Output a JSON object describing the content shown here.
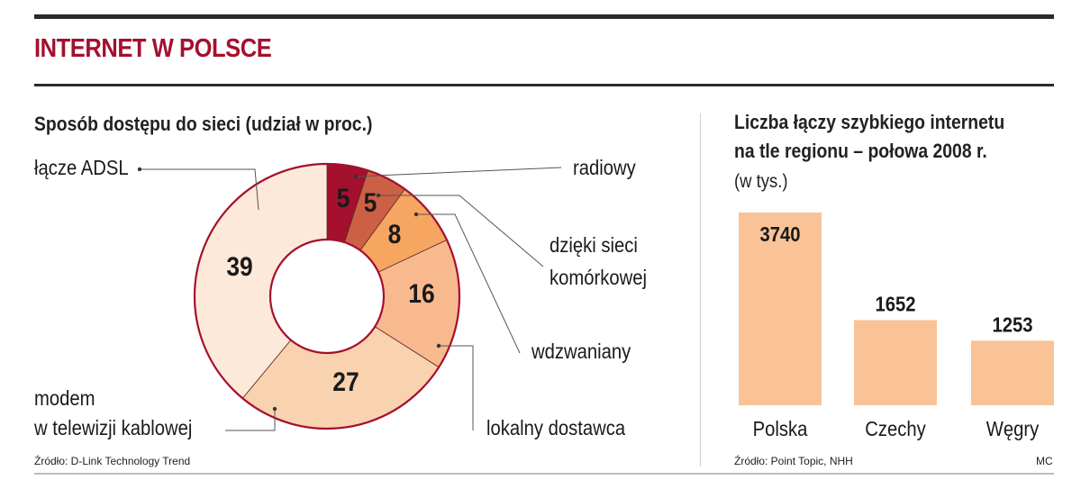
{
  "header": {
    "title": "INTERNET W POLSCE"
  },
  "left_panel": {
    "title": "Sposób dostępu do sieci (udział w proc.)",
    "source": "Źródło: D-Link Technology Trend"
  },
  "right_panel": {
    "title_lines": [
      "Liczba łączy szybkiego internetu",
      "na tle regionu – połowa 2008 r."
    ],
    "unit": "(w tys.)",
    "source": "Źródło: Point Topic, NHH",
    "credit": "MC"
  },
  "chart_data": [
    {
      "type": "pie",
      "title": "Sposób dostępu do sieci (udział w proc.)",
      "categories": [
        "radiowy",
        "dzięki sieci komórkowej",
        "wdzwaniany",
        "lokalny dostawca",
        "modem w telewizji kablowej",
        "łącze ADSL"
      ],
      "values": [
        5,
        5,
        8,
        16,
        27,
        39
      ],
      "value_labels": [
        "5",
        "5",
        "8",
        "16",
        "27",
        "39"
      ],
      "legend_lines": [
        [
          "radiowy"
        ],
        [
          "dzięki sieci",
          "komórkowej"
        ],
        [
          "wdzwaniany"
        ],
        [
          "lokalny dostawca"
        ],
        [
          "modem",
          "w telewizji kablowej"
        ],
        [
          "łącze ADSL"
        ]
      ],
      "colors": [
        "#a4102e",
        "#cc6046",
        "#f6a661",
        "#f8b98e",
        "#f9d2b0",
        "#fde9da"
      ],
      "outline_color": "#a4102e",
      "donut": true
    },
    {
      "type": "bar",
      "title": "Liczba łączy szybkiego internetu na tle regionu – połowa 2008 r.",
      "ylabel": "(w tys.)",
      "categories": [
        "Polska",
        "Czechy",
        "Węgry"
      ],
      "values": [
        3740,
        1652,
        1253
      ],
      "value_labels": [
        "3740",
        "1652",
        "1253"
      ],
      "color": "#f9c397",
      "ylim": [
        0,
        3740
      ],
      "grid": false
    }
  ]
}
